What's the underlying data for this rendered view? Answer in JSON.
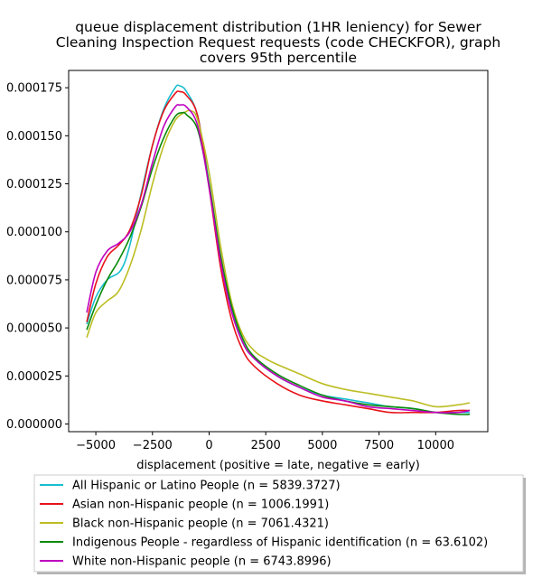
{
  "chart_data": {
    "type": "line",
    "title_lines": [
      "queue displacement distribution (1HR leniency) for Sewer",
      "Cleaning Inspection Request  requests (code CHECKFOR), graph",
      "covers 95th percentile"
    ],
    "xlabel": "displacement (positive = late, negative = early)",
    "ylabel": "",
    "xlim": [
      -6200,
      12300
    ],
    "ylim": [
      -4e-06,
      0.000184
    ],
    "x_ticks": [
      -5000,
      -2500,
      0,
      2500,
      5000,
      7500,
      10000
    ],
    "x_tick_labels": [
      "−5000",
      "−2500",
      "0",
      "2500",
      "5000",
      "7500",
      "10000"
    ],
    "y_ticks": [
      0,
      2.5e-05,
      5e-05,
      7.5e-05,
      0.0001,
      0.000125,
      0.00015,
      0.000175
    ],
    "y_tick_labels": [
      "0.000000",
      "0.000025",
      "0.000050",
      "0.000075",
      "0.000100",
      "0.000125",
      "0.000150",
      "0.000175"
    ],
    "grid": false,
    "legend_position": "below",
    "series": [
      {
        "name": "All Hispanic or Latino People (n = 5839.3727)",
        "color": "#17becf",
        "points": [
          [
            -5400,
            5.2e-05
          ],
          [
            -5000,
            6.6e-05
          ],
          [
            -4500,
            7.5e-05
          ],
          [
            -3900,
            8e-05
          ],
          [
            -3500,
            9.3e-05
          ],
          [
            -3000,
            0.00012
          ],
          [
            -2500,
            0.000145
          ],
          [
            -2000,
            0.000164
          ],
          [
            -1500,
            0.000175
          ],
          [
            -1300,
            0.000176
          ],
          [
            -1000,
            0.000173
          ],
          [
            -500,
            0.00016
          ],
          [
            0,
            0.000125
          ],
          [
            500,
            8.7e-05
          ],
          [
            1000,
            5.9e-05
          ],
          [
            1500,
            4.2e-05
          ],
          [
            2000,
            3.4e-05
          ],
          [
            3000,
            2.5e-05
          ],
          [
            4000,
            1.9e-05
          ],
          [
            5000,
            1.5e-05
          ],
          [
            6000,
            1.3e-05
          ],
          [
            7000,
            1.1e-05
          ],
          [
            8000,
            9e-06
          ],
          [
            9000,
            8e-06
          ],
          [
            10000,
            6e-06
          ],
          [
            11000,
            6e-06
          ],
          [
            11500,
            6e-06
          ]
        ]
      },
      {
        "name": "Asian non-Hispanic people (n = 1006.1991)",
        "color": "#e8121a",
        "points": [
          [
            -5400,
            5.3e-05
          ],
          [
            -5000,
            7.3e-05
          ],
          [
            -4500,
            8.7e-05
          ],
          [
            -4000,
            9.3e-05
          ],
          [
            -3500,
            0.000101
          ],
          [
            -3000,
            0.000119
          ],
          [
            -2500,
            0.000145
          ],
          [
            -2000,
            0.000163
          ],
          [
            -1500,
            0.000172
          ],
          [
            -1300,
            0.000173
          ],
          [
            -1000,
            0.000171
          ],
          [
            -500,
            0.00016
          ],
          [
            0,
            0.000123
          ],
          [
            500,
            8.2e-05
          ],
          [
            1000,
            5.4e-05
          ],
          [
            1500,
            3.8e-05
          ],
          [
            2000,
            3e-05
          ],
          [
            3000,
            2.1e-05
          ],
          [
            4000,
            1.5e-05
          ],
          [
            5000,
            1.2e-05
          ],
          [
            6000,
            1e-05
          ],
          [
            7000,
            8e-06
          ],
          [
            8000,
            6e-06
          ],
          [
            9000,
            6e-06
          ],
          [
            10000,
            6e-06
          ],
          [
            11000,
            7e-06
          ],
          [
            11500,
            7e-06
          ]
        ]
      },
      {
        "name": "Black non-Hispanic people (n = 7061.4321)",
        "color": "#bcbd22",
        "points": [
          [
            -5400,
            4.5e-05
          ],
          [
            -5000,
            5.8e-05
          ],
          [
            -4500,
            6.4e-05
          ],
          [
            -4000,
            6.9e-05
          ],
          [
            -3500,
            8.2e-05
          ],
          [
            -3000,
            0.000101
          ],
          [
            -2500,
            0.000125
          ],
          [
            -2000,
            0.000145
          ],
          [
            -1500,
            0.000158
          ],
          [
            -1100,
            0.000162
          ],
          [
            -800,
            0.000163
          ],
          [
            -500,
            0.000158
          ],
          [
            0,
            0.000131
          ],
          [
            500,
            9.3e-05
          ],
          [
            1000,
            6.3e-05
          ],
          [
            1500,
            4.6e-05
          ],
          [
            2000,
            3.8e-05
          ],
          [
            2500,
            3.4e-05
          ],
          [
            3000,
            3.1e-05
          ],
          [
            4000,
            2.6e-05
          ],
          [
            5000,
            2.1e-05
          ],
          [
            6000,
            1.8e-05
          ],
          [
            7000,
            1.6e-05
          ],
          [
            8000,
            1.4e-05
          ],
          [
            9000,
            1.2e-05
          ],
          [
            10000,
            9e-06
          ],
          [
            11000,
            1e-05
          ],
          [
            11500,
            1.1e-05
          ]
        ]
      },
      {
        "name": "Indigenous People - regardless of Hispanic identification (n = 63.6102)",
        "color": "#0a8a0a",
        "points": [
          [
            -5400,
            4.9e-05
          ],
          [
            -5000,
            6.2e-05
          ],
          [
            -4500,
            7.5e-05
          ],
          [
            -4000,
            8.5e-05
          ],
          [
            -3500,
            9.7e-05
          ],
          [
            -3000,
            0.000113
          ],
          [
            -2500,
            0.000133
          ],
          [
            -2000,
            0.000149
          ],
          [
            -1500,
            0.00016
          ],
          [
            -1200,
            0.000162
          ],
          [
            -1000,
            0.000161
          ],
          [
            -500,
            0.000153
          ],
          [
            0,
            0.000125
          ],
          [
            500,
            8.8e-05
          ],
          [
            1000,
            6.1e-05
          ],
          [
            1500,
            4.4e-05
          ],
          [
            2000,
            3.5e-05
          ],
          [
            3000,
            2.6e-05
          ],
          [
            4000,
            2e-05
          ],
          [
            5000,
            1.5e-05
          ],
          [
            6000,
            1.2e-05
          ],
          [
            7000,
            1e-05
          ],
          [
            8000,
            9e-06
          ],
          [
            9000,
            8e-06
          ],
          [
            10000,
            6e-06
          ],
          [
            11000,
            5e-06
          ],
          [
            11500,
            5e-06
          ]
        ]
      },
      {
        "name": "White non-Hispanic people (n = 6743.8996)",
        "color": "#bf00bf",
        "points": [
          [
            -5400,
            5.8e-05
          ],
          [
            -5000,
            7.9e-05
          ],
          [
            -4500,
            9e-05
          ],
          [
            -4000,
            9.4e-05
          ],
          [
            -3500,
            0.0001
          ],
          [
            -3000,
            0.000114
          ],
          [
            -2500,
            0.000136
          ],
          [
            -2000,
            0.000155
          ],
          [
            -1500,
            0.000165
          ],
          [
            -1300,
            0.000166
          ],
          [
            -1000,
            0.000165
          ],
          [
            -500,
            0.000155
          ],
          [
            0,
            0.000123
          ],
          [
            500,
            8.5e-05
          ],
          [
            1000,
            5.8e-05
          ],
          [
            1500,
            4.2e-05
          ],
          [
            2000,
            3.4e-05
          ],
          [
            3000,
            2.5e-05
          ],
          [
            4000,
            1.9e-05
          ],
          [
            5000,
            1.4e-05
          ],
          [
            6000,
            1.2e-05
          ],
          [
            7000,
            9e-06
          ],
          [
            8000,
            8e-06
          ],
          [
            9000,
            7e-06
          ],
          [
            10000,
            6e-06
          ],
          [
            11000,
            6e-06
          ],
          [
            11500,
            7e-06
          ]
        ]
      }
    ]
  }
}
